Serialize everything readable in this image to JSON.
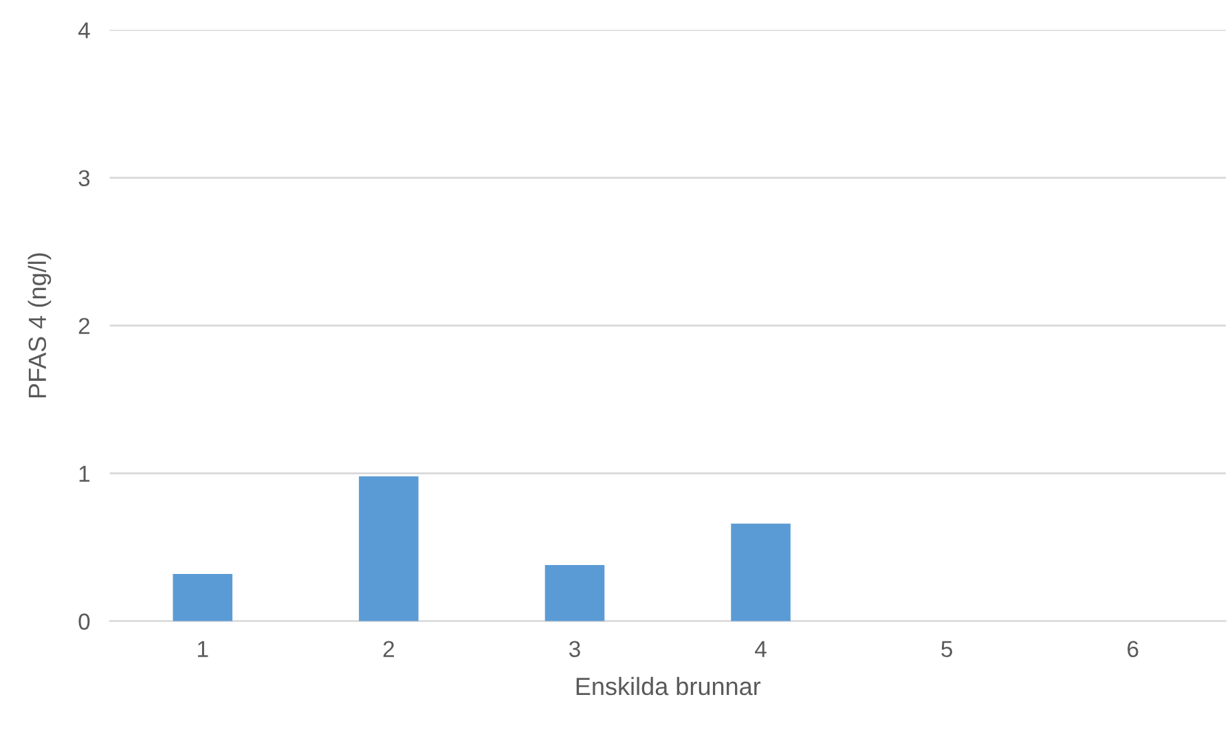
{
  "chart_data": {
    "type": "bar",
    "xlabel": "Enskilda brunnar",
    "ylabel": "PFAS 4 (ng/l)",
    "categories": [
      "1",
      "2",
      "3",
      "4",
      "5",
      "6"
    ],
    "values": [
      0.32,
      0.98,
      0.38,
      0.66,
      0,
      0
    ],
    "color": "#5b9bd5",
    "ylim": [
      0,
      4
    ],
    "yticks": [
      0,
      1,
      2,
      3,
      4
    ],
    "grid": "y",
    "legend": false
  }
}
